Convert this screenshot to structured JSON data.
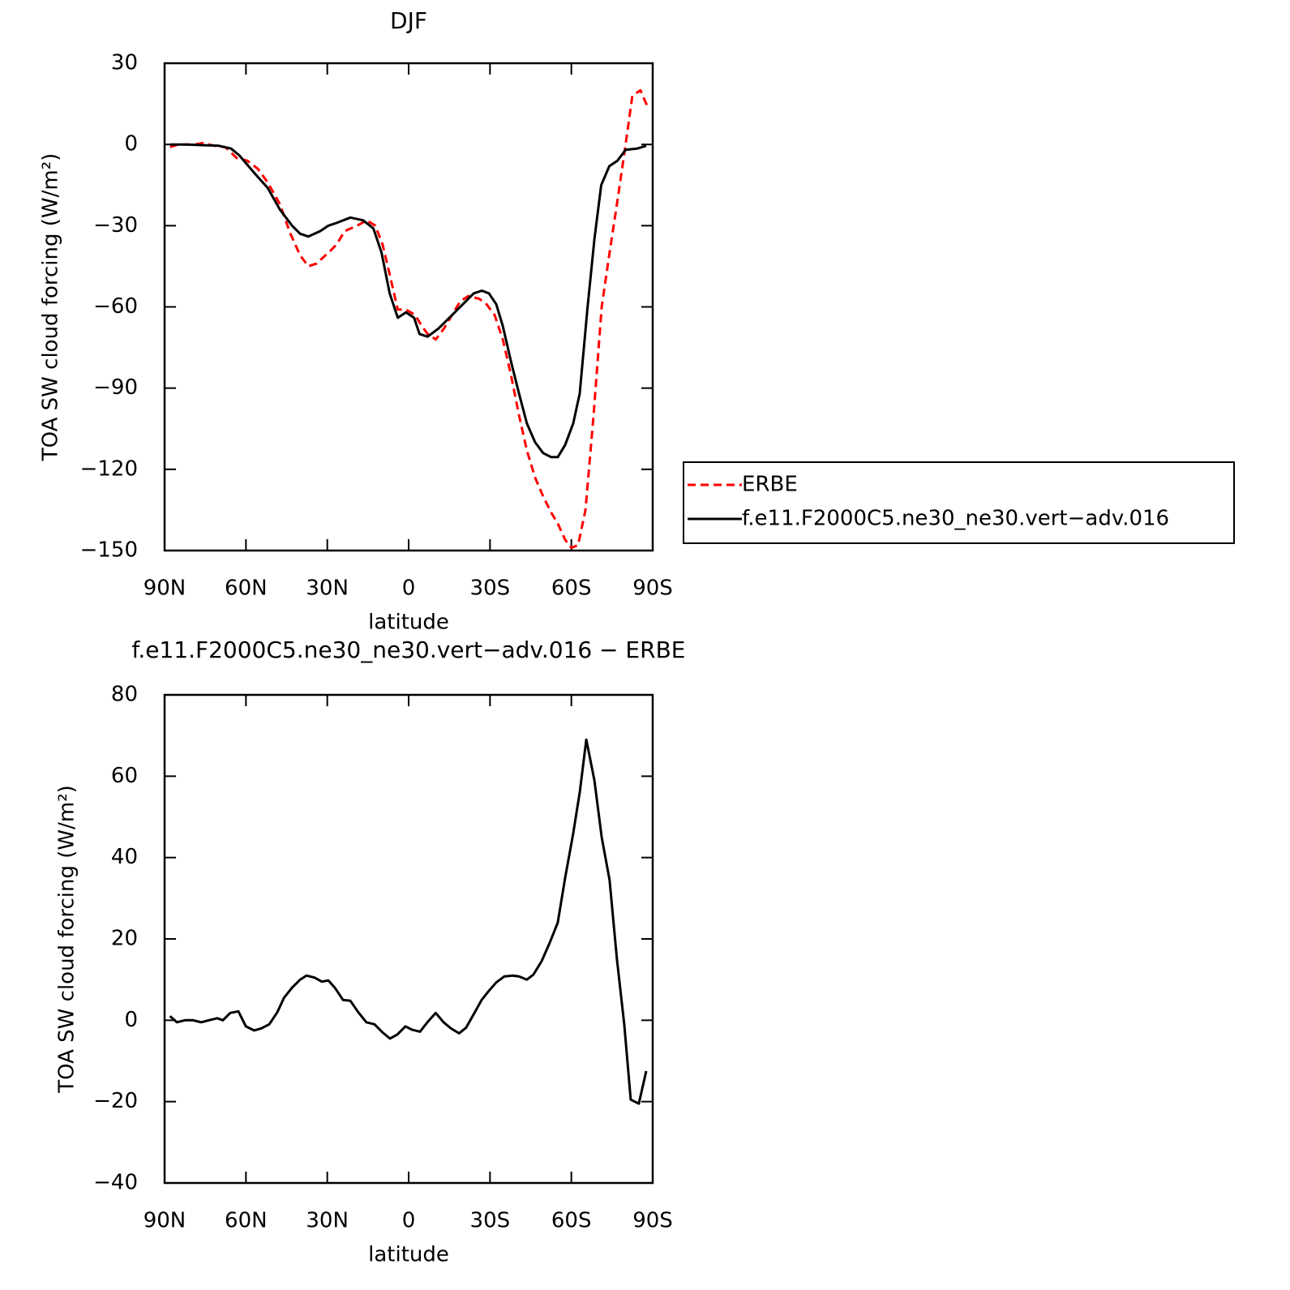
{
  "chart_data": [
    {
      "type": "line",
      "title": "DJF",
      "xlabel": "latitude",
      "ylabel": "TOA SW cloud forcing (W/m²)",
      "xlim": [
        90,
        -90
      ],
      "ylim": [
        -150,
        30
      ],
      "xticks": [
        {
          "value": 90,
          "label": "90N"
        },
        {
          "value": 60,
          "label": "60N"
        },
        {
          "value": 30,
          "label": "30N"
        },
        0,
        {
          "value": -30,
          "label": "30S"
        },
        {
          "value": -60,
          "label": "60S"
        },
        {
          "value": -90,
          "label": "90S"
        }
      ],
      "yticks": [
        {
          "value": -150,
          "label": "−150"
        },
        {
          "value": -120,
          "label": "−120"
        },
        {
          "value": -90,
          "label": "−90"
        },
        {
          "value": -60,
          "label": "−60"
        },
        {
          "value": -30,
          "label": "−30"
        },
        0,
        30
      ],
      "legend": "right",
      "series": [
        {
          "name": "ERBE",
          "color": "#ff0000",
          "dash": true,
          "x": [
            88,
            85,
            79,
            76,
            71.5,
            67.6,
            63.4,
            59.5,
            55.6,
            52,
            47.5,
            43.6,
            40,
            37,
            34,
            29.6,
            26.6,
            23.6,
            19,
            15.5,
            12.3,
            9.6,
            7,
            4,
            1,
            -2.4,
            -4.8,
            -7,
            -10,
            -13,
            -16,
            -19,
            -22,
            -26,
            -28.7,
            -31.7,
            -34.7,
            -37.7,
            -40.7,
            -43.6,
            -46.6,
            -49.6,
            -52.6,
            -55,
            -57.7,
            -60,
            -62.5,
            -65.2,
            -68.2,
            -71.2,
            -74.1,
            -77.1,
            -80,
            -82.5,
            -85.5,
            -88.5
          ],
          "values": [
            -1,
            0,
            0,
            0.5,
            -0.5,
            -1,
            -5,
            -6,
            -9,
            -14,
            -22,
            -33,
            -41,
            -45,
            -44,
            -40,
            -37,
            -32,
            -30,
            -28,
            -30,
            -37,
            -48,
            -61,
            -61,
            -63,
            -67,
            -70,
            -72,
            -68,
            -63,
            -58,
            -56,
            -57,
            -59,
            -63,
            -72,
            -85,
            -100,
            -113,
            -123,
            -130,
            -136,
            -140,
            -146,
            -149,
            -148,
            -135,
            -100,
            -60,
            -40,
            -20,
            0,
            18,
            20,
            13
          ]
        },
        {
          "name": "f.e11.F2000C5.ne30_ne30.vert−adv.016",
          "color": "#000000",
          "dash": false,
          "x": [
            88,
            82,
            70,
            65.5,
            62.5,
            56.5,
            52,
            47.5,
            43,
            40,
            37,
            32.6,
            29.6,
            26.6,
            21.5,
            16.8,
            13,
            10,
            7,
            4,
            1,
            -2,
            -4,
            -7,
            -11,
            -15,
            -20,
            -24,
            -27,
            -29.6,
            -32.3,
            -34.7,
            -37.7,
            -40.7,
            -43.6,
            -46.6,
            -49.6,
            -52.6,
            -55,
            -57.7,
            -60.7,
            -63.1,
            -66,
            -68.5,
            -71,
            -74,
            -77,
            -80,
            -84.3,
            -87.6
          ],
          "values": [
            0,
            0,
            -0.5,
            -1.5,
            -4,
            -11,
            -16,
            -24,
            -30,
            -33,
            -34,
            -32,
            -30,
            -29,
            -27,
            -28,
            -31,
            -40,
            -55,
            -64,
            -62,
            -64,
            -70,
            -71,
            -68,
            -64,
            -59,
            -55,
            -54,
            -55,
            -59,
            -67,
            -80,
            -92,
            -103,
            -110,
            -114,
            -115.5,
            -115.5,
            -111,
            -103,
            -92,
            -60,
            -35,
            -15,
            -8,
            -6,
            -2,
            -1.5,
            -0.5
          ]
        }
      ]
    },
    {
      "type": "line",
      "title": "f.e11.F2000C5.ne30_ne30.vert−adv.016 − ERBE",
      "xlabel": "latitude",
      "ylabel": "TOA SW cloud forcing (W/m²)",
      "xlim": [
        90,
        -90
      ],
      "ylim": [
        -40,
        80
      ],
      "xticks": [
        {
          "value": 90,
          "label": "90N"
        },
        {
          "value": 60,
          "label": "60N"
        },
        {
          "value": 30,
          "label": "30N"
        },
        0,
        {
          "value": -30,
          "label": "30S"
        },
        {
          "value": -60,
          "label": "60S"
        },
        {
          "value": -90,
          "label": "90S"
        }
      ],
      "yticks": [
        {
          "value": -40,
          "label": "−40"
        },
        {
          "value": -20,
          "label": "−20"
        },
        0,
        20,
        40,
        60,
        80
      ],
      "series": [
        {
          "color": "#000000",
          "dash": false,
          "x": [
            88,
            85.5,
            82.5,
            79.5,
            76.5,
            73.6,
            70.6,
            68.5,
            65.8,
            62.8,
            60,
            57,
            54.4,
            51.4,
            48.4,
            46,
            43,
            40,
            37.7,
            34.7,
            32,
            29.6,
            27.2,
            24.2,
            21.5,
            18.6,
            15.6,
            12.6,
            9.6,
            6.9,
            4.2,
            1.2,
            -1.2,
            -4.2,
            -6.9,
            -10,
            -12.9,
            -15.6,
            -18.6,
            -21.2,
            -24,
            -26.9,
            -29.3,
            -32.3,
            -35.3,
            -38.3,
            -40.7,
            -43.6,
            -46,
            -49,
            -52,
            -55,
            -57.7,
            -60.7,
            -63.1,
            -65.5,
            -68.5,
            -71.2,
            -74.1,
            -76.8,
            -79.5,
            -81.9,
            -84.9,
            -87.6
          ],
          "values": [
            1,
            -0.5,
            0,
            0,
            -0.5,
            0,
            0.5,
            0,
            1.8,
            2.2,
            -1.5,
            -2.5,
            -2,
            -1,
            2,
            5.5,
            8,
            10,
            11,
            10.5,
            9.5,
            9.8,
            8,
            5,
            4.8,
            2,
            -0.5,
            -1,
            -3,
            -4.5,
            -3.5,
            -1.5,
            -2.3,
            -2.8,
            -0.5,
            1.8,
            -0.5,
            -2,
            -3.2,
            -1.8,
            1.5,
            5,
            7,
            9.3,
            10.8,
            11,
            10.8,
            10,
            11.2,
            14.5,
            19,
            24,
            35,
            46,
            56,
            69,
            59,
            45,
            34.5,
            15,
            -1,
            -19.5,
            -20.5,
            -12.5
          ]
        }
      ]
    }
  ]
}
